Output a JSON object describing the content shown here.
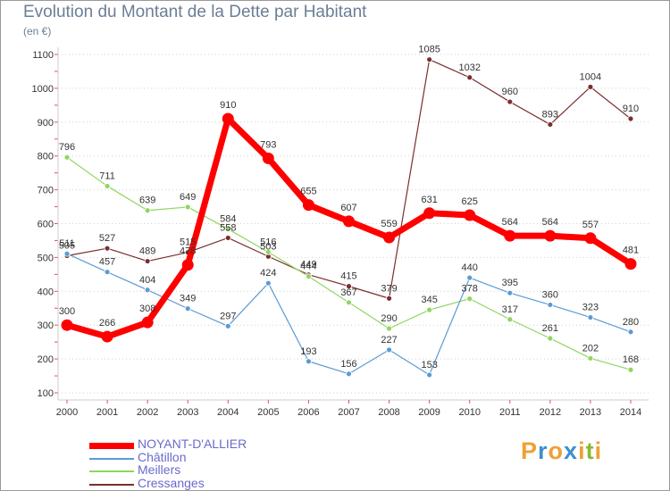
{
  "chart_data": {
    "type": "line",
    "title": "Evolution du Montant de la Dette par Habitant",
    "subtitle": "(en €)",
    "x": [
      "2000",
      "2001",
      "2002",
      "2003",
      "2004",
      "2005",
      "2006",
      "2007",
      "2008",
      "2009",
      "2010",
      "2011",
      "2012",
      "2013",
      "2014"
    ],
    "yticks": [
      100,
      200,
      300,
      400,
      500,
      600,
      700,
      800,
      900,
      1000,
      1100
    ],
    "ylim": [
      100,
      1100
    ],
    "grid": "horizontal dashed",
    "legend_position": "bottom-left",
    "series": [
      {
        "name": "NOYANT-D'ALLIER",
        "color": "#ff0000",
        "values": [
          300,
          266,
          308,
          478,
          910,
          793,
          655,
          607,
          559,
          631,
          625,
          564,
          564,
          557,
          481
        ],
        "labels": [
          "300",
          "266",
          "308",
          "478",
          "910",
          "793",
          "655",
          "607",
          "559",
          "631",
          "625",
          "564",
          "564",
          "557",
          "481"
        ]
      },
      {
        "name": "Châtillon",
        "color": "#5b9bd5",
        "values": [
          511,
          457,
          404,
          349,
          297,
          424,
          193,
          156,
          227,
          153,
          440,
          395,
          360,
          323,
          280
        ],
        "labels": [
          "511",
          "457",
          "404",
          "349",
          "297",
          "424",
          "193",
          "156",
          "227",
          "153",
          "440",
          "395",
          "360",
          "323",
          "280"
        ]
      },
      {
        "name": "Meillers",
        "color": "#8fd65f",
        "values": [
          796,
          711,
          639,
          649,
          584,
          516,
          444,
          367,
          290,
          345,
          378,
          317,
          261,
          202,
          168
        ],
        "labels": [
          "796",
          "711",
          "639",
          "649",
          "584",
          "516",
          "444",
          "367",
          "290",
          "345",
          "378",
          "317",
          "261",
          "202",
          "168"
        ]
      },
      {
        "name": "Cressanges",
        "color": "#7a2e2e",
        "values": [
          505,
          527,
          489,
          515,
          558,
          503,
          449,
          415,
          379,
          1085,
          1032,
          960,
          893,
          1004,
          910
        ],
        "labels": [
          "505",
          "527",
          "489",
          "515",
          "558",
          "503",
          "449",
          "415",
          "379",
          "1085",
          "1032",
          "960",
          "893",
          "1004",
          "910"
        ]
      }
    ]
  },
  "branding": {
    "logo_text": "Proxiti",
    "logo_colors": [
      "#f0a033",
      "#3d8fcf",
      "#f0a033",
      "#3d8fcf",
      "#f0a033",
      "#8ab833",
      "#f0a033"
    ]
  }
}
